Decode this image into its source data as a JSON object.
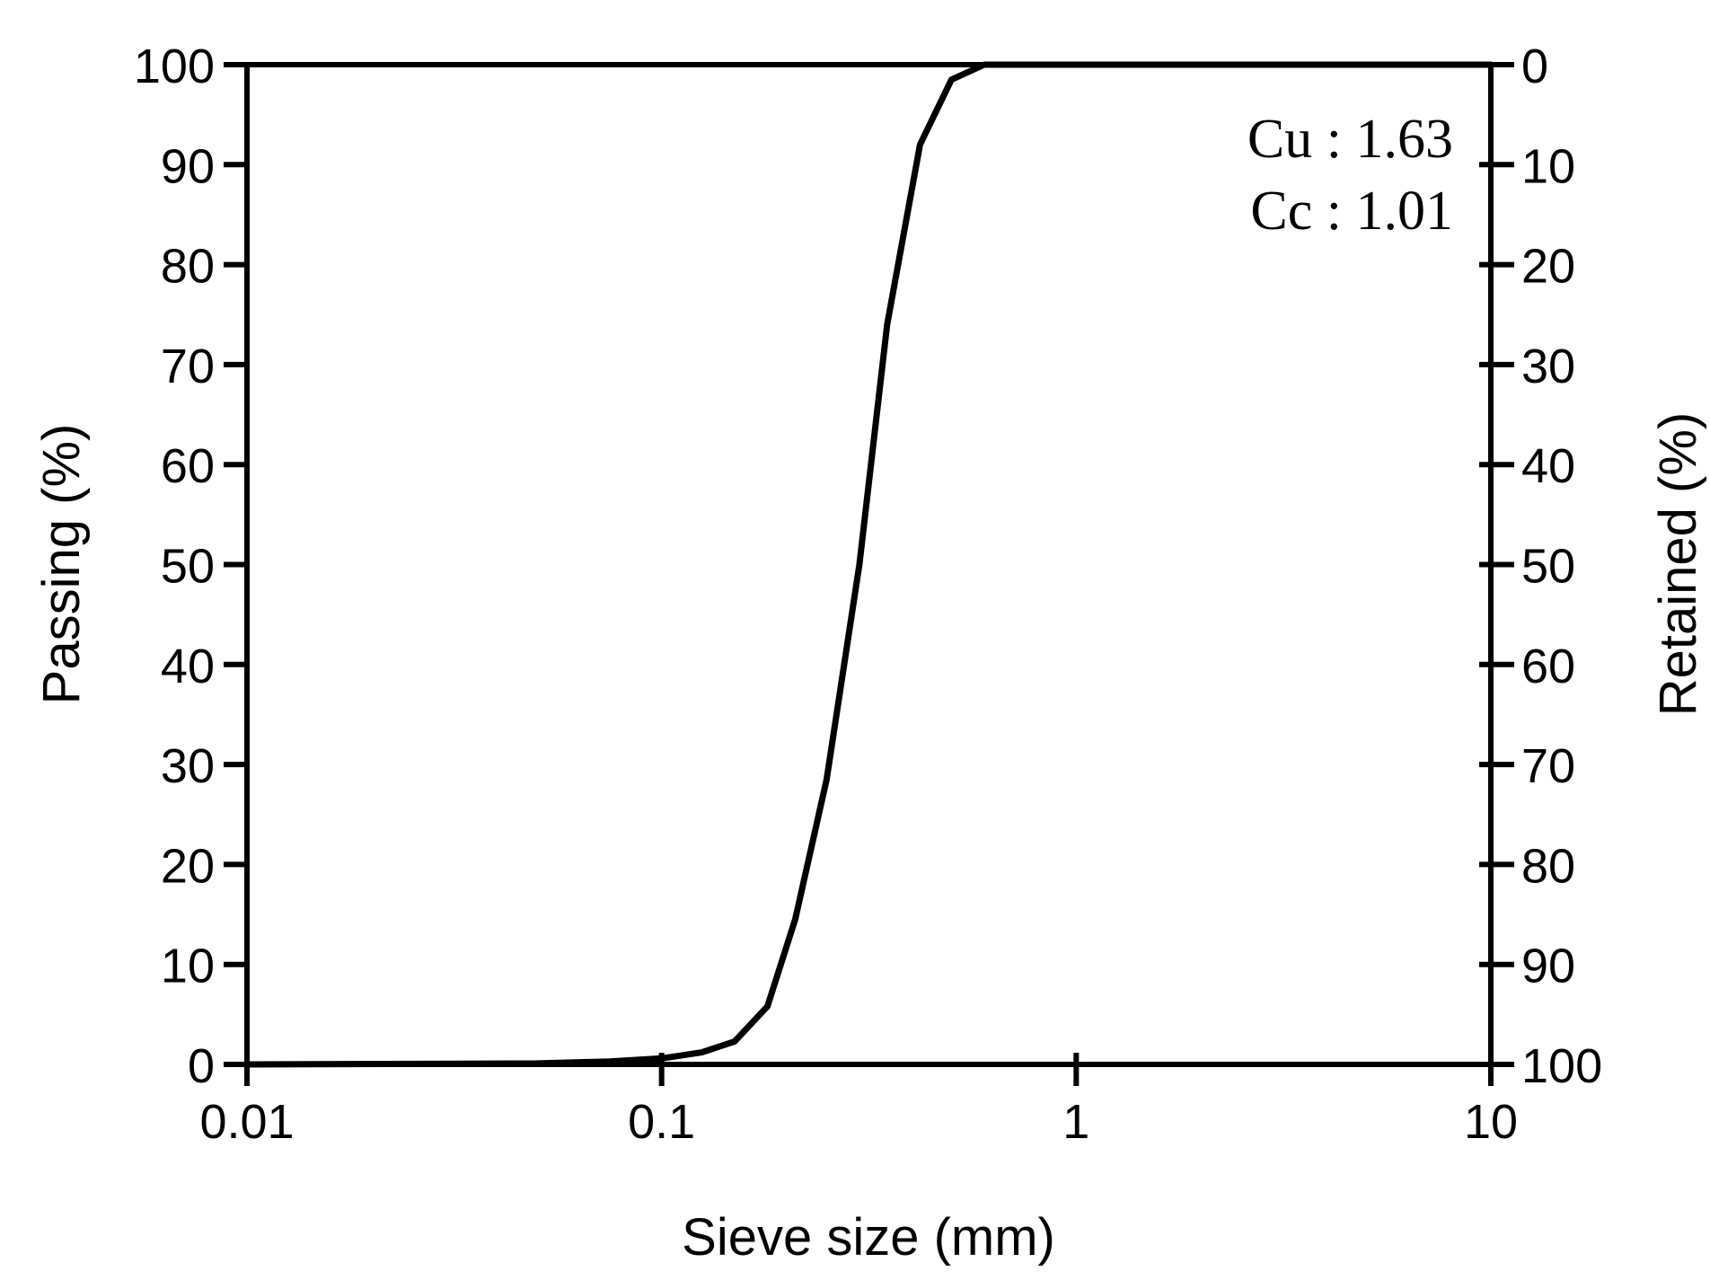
{
  "chart_data": {
    "type": "line",
    "xlabel": "Sieve size (mm)",
    "ylabel": "Passing (%)",
    "y2label": "Retained (%)",
    "x_scale": "log",
    "xlim": [
      0.01,
      10
    ],
    "ylim": [
      0,
      100
    ],
    "y2lim": [
      100,
      0
    ],
    "x_ticks": [
      0.01,
      0.1,
      1,
      10
    ],
    "x_tick_labels": [
      "0.01",
      "0.1",
      "1",
      "10"
    ],
    "y_ticks": [
      0,
      10,
      20,
      30,
      40,
      50,
      60,
      70,
      80,
      90,
      100
    ],
    "y_tick_labels": [
      "0",
      "10",
      "20",
      "30",
      "40",
      "50",
      "60",
      "70",
      "80",
      "90",
      "100"
    ],
    "y2_ticks": [
      0,
      10,
      20,
      30,
      40,
      50,
      60,
      70,
      80,
      90,
      100
    ],
    "y2_tick_labels": [
      "0",
      "10",
      "20",
      "30",
      "40",
      "50",
      "60",
      "70",
      "80",
      "90",
      "100"
    ],
    "grid": false,
    "annotations": [
      "Cu : 1.63",
      "Cc : 1.01"
    ],
    "line_color": "#000000",
    "series": [
      {
        "x": [
          0.01,
          0.05,
          0.075,
          0.1,
          0.125,
          0.15,
          0.18,
          0.21,
          0.25,
          0.3,
          0.35,
          0.42,
          0.5,
          0.6,
          1.0,
          10
        ],
        "values": [
          0,
          0.1,
          0.3,
          0.6,
          1.2,
          2.3,
          5.8,
          14.5,
          28.5,
          50,
          74,
          92,
          98.5,
          100,
          100,
          100
        ]
      }
    ]
  }
}
